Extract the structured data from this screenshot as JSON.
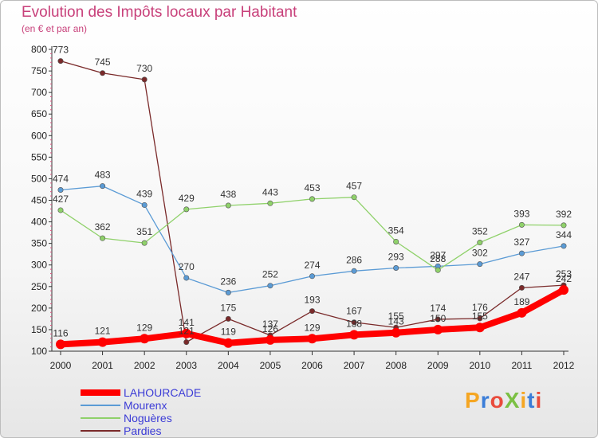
{
  "title": "Evolution des Impôts locaux par Habitant",
  "subtitle": "(en € et par an)",
  "logo": "ProXiti",
  "chart_data": {
    "type": "line",
    "x": [
      "2000",
      "2001",
      "2002",
      "2003",
      "2004",
      "2005",
      "2006",
      "2007",
      "2008",
      "2009",
      "2010",
      "2011",
      "2012"
    ],
    "ylim": [
      100,
      800
    ],
    "yticks": [
      100,
      150,
      200,
      250,
      300,
      350,
      400,
      450,
      500,
      550,
      600,
      650,
      700,
      750,
      800
    ],
    "grid": false,
    "legend_position": "bottom-left",
    "series": [
      {
        "name": "LAHOURCADE",
        "color": "#ff0000",
        "values": [
          116,
          121,
          129,
          141,
          119,
          126,
          129,
          138,
          143,
          150,
          155,
          189,
          242
        ]
      },
      {
        "name": "Mourenx",
        "color": "#5b9bd5",
        "values": [
          474,
          483,
          439,
          270,
          236,
          252,
          274,
          286,
          293,
          297,
          302,
          327,
          344
        ]
      },
      {
        "name": "Noguères",
        "color": "#8fd16a",
        "values": [
          427,
          362,
          351,
          429,
          438,
          443,
          453,
          457,
          354,
          288,
          352,
          393,
          392
        ]
      },
      {
        "name": "Pardies",
        "color": "#7a2a2a",
        "values": [
          773,
          745,
          730,
          121,
          175,
          137,
          193,
          167,
          155,
          174,
          176,
          247,
          253
        ]
      }
    ]
  }
}
